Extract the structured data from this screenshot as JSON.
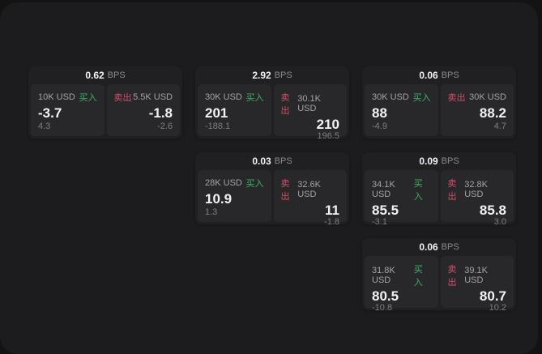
{
  "theme": {
    "bg": "#131314",
    "panel_bg": "#1c1c1e",
    "card_bg": "#202022",
    "tile_bg": "#28282b",
    "buy": "#40b364",
    "sell": "#cf4f66",
    "text_bright": "#f2f2f2",
    "text_label": "#a3a3a3",
    "text_dim": "#7f7f7f",
    "text_bps": "#8a8a8a"
  },
  "labels": {
    "bps_unit": "BPS",
    "buy": "买入",
    "sell": "卖出"
  },
  "cards": [
    {
      "row": 1,
      "col": 1,
      "bps": "0.62",
      "buy": {
        "amount": "10K USD",
        "price": "-3.7",
        "delta": "4.3"
      },
      "sell": {
        "amount": "5.5K USD",
        "price": "-1.8",
        "delta": "-2.6"
      }
    },
    {
      "row": 1,
      "col": 2,
      "bps": "2.92",
      "buy": {
        "amount": "30K USD",
        "price": "201",
        "delta": "-188.1"
      },
      "sell": {
        "amount": "30.1K USD",
        "price": "210",
        "delta": "196.5"
      }
    },
    {
      "row": 1,
      "col": 3,
      "bps": "0.06",
      "buy": {
        "amount": "30K USD",
        "price": "88",
        "delta": "-4.9"
      },
      "sell": {
        "amount": "30K USD",
        "price": "88.2",
        "delta": "4.7"
      }
    },
    {
      "row": 2,
      "col": 2,
      "bps": "0.03",
      "buy": {
        "amount": "28K USD",
        "price": "10.9",
        "delta": "1.3"
      },
      "sell": {
        "amount": "32.6K USD",
        "price": "11",
        "delta": "-1.8"
      }
    },
    {
      "row": 2,
      "col": 3,
      "bps": "0.09",
      "buy": {
        "amount": "34.1K USD",
        "price": "85.5",
        "delta": "-3.1"
      },
      "sell": {
        "amount": "32.8K USD",
        "price": "85.8",
        "delta": "3.0"
      }
    },
    {
      "row": 3,
      "col": 3,
      "bps": "0.06",
      "buy": {
        "amount": "31.8K USD",
        "price": "80.5",
        "delta": "-10.8"
      },
      "sell": {
        "amount": "39.1K USD",
        "price": "80.7",
        "delta": "10.2"
      }
    }
  ]
}
